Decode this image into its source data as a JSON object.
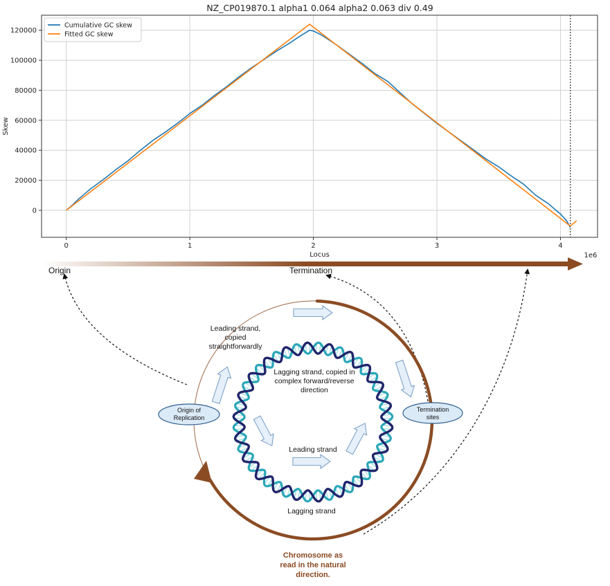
{
  "chart_data": {
    "type": "line",
    "title": "NZ_CP019870.1 alpha1 0.064 alpha2 0.063 div 0.49",
    "xlabel": "Locus",
    "ylabel": "Skew",
    "x_scale_label": "1e6",
    "xlim": [
      -0.2,
      4.3
    ],
    "ylim": [
      -18000,
      130000
    ],
    "grid": true,
    "legend_position": "top-left",
    "x_ticks": [
      0,
      1,
      2,
      3,
      4
    ],
    "x_tick_labels": [
      "0",
      "1",
      "2",
      "3",
      "4"
    ],
    "y_ticks": [
      0,
      20000,
      40000,
      60000,
      80000,
      100000,
      120000
    ],
    "y_tick_labels": [
      "0",
      "20000",
      "40000",
      "60000",
      "80000",
      "100000",
      "120000"
    ],
    "vline_x": 4.08,
    "series": [
      {
        "name": "Cumulative GC skew",
        "color": "#1f77b4",
        "x": [
          0,
          0.05,
          0.1,
          0.2,
          0.3,
          0.4,
          0.5,
          0.6,
          0.7,
          0.8,
          0.9,
          1.0,
          1.1,
          1.2,
          1.3,
          1.4,
          1.5,
          1.6,
          1.7,
          1.8,
          1.9,
          1.97,
          2.0,
          2.05,
          2.1,
          2.2,
          2.3,
          2.4,
          2.5,
          2.6,
          2.7,
          2.8,
          2.9,
          3.0,
          3.1,
          3.2,
          3.3,
          3.4,
          3.5,
          3.6,
          3.7,
          3.8,
          3.9,
          4.0,
          4.05,
          4.08
        ],
        "values": [
          0,
          3500,
          7500,
          14500,
          20500,
          27000,
          33000,
          40000,
          46500,
          52000,
          58000,
          64500,
          70000,
          76500,
          82500,
          89000,
          95000,
          100500,
          106000,
          111000,
          116500,
          120000,
          119500,
          117500,
          115000,
          109500,
          103500,
          97500,
          91000,
          86000,
          78500,
          71000,
          64500,
          58000,
          52000,
          46000,
          40000,
          34000,
          29000,
          23000,
          17500,
          10000,
          4500,
          -2500,
          -7000,
          -11500
        ]
      },
      {
        "name": "Fitted GC skew",
        "color": "#ff7f0e",
        "x": [
          0,
          1.97,
          4.08,
          4.13
        ],
        "values": [
          0,
          124000,
          -10500,
          -7000
        ]
      }
    ]
  },
  "diagram": {
    "origin_label": "Origin",
    "termination_label": "Termination",
    "origin_node": [
      "Origin of",
      "Replication"
    ],
    "termination_node": [
      "Termination",
      "sites"
    ],
    "leading_top": [
      "Leading strand,",
      "copied",
      "straightforwardly"
    ],
    "lagging_inner": [
      "Lagging strand, copied in",
      "complex forward/reverse",
      "direction"
    ],
    "leading_bottom": "Leading strand",
    "lagging_bottom": "Lagging strand",
    "chromosome_caption": [
      "Chromosome as",
      "read in the natural",
      "direction."
    ],
    "colors": {
      "brown": "#8b4c24",
      "node_fill": "#dbeaf7",
      "node_stroke": "#2f5f8f",
      "arrow_fill": "#e6f0fa",
      "arrow_stroke": "#7fa2c8",
      "dna_dark": "#20246b",
      "dna_teal": "#2aa6b8"
    }
  }
}
